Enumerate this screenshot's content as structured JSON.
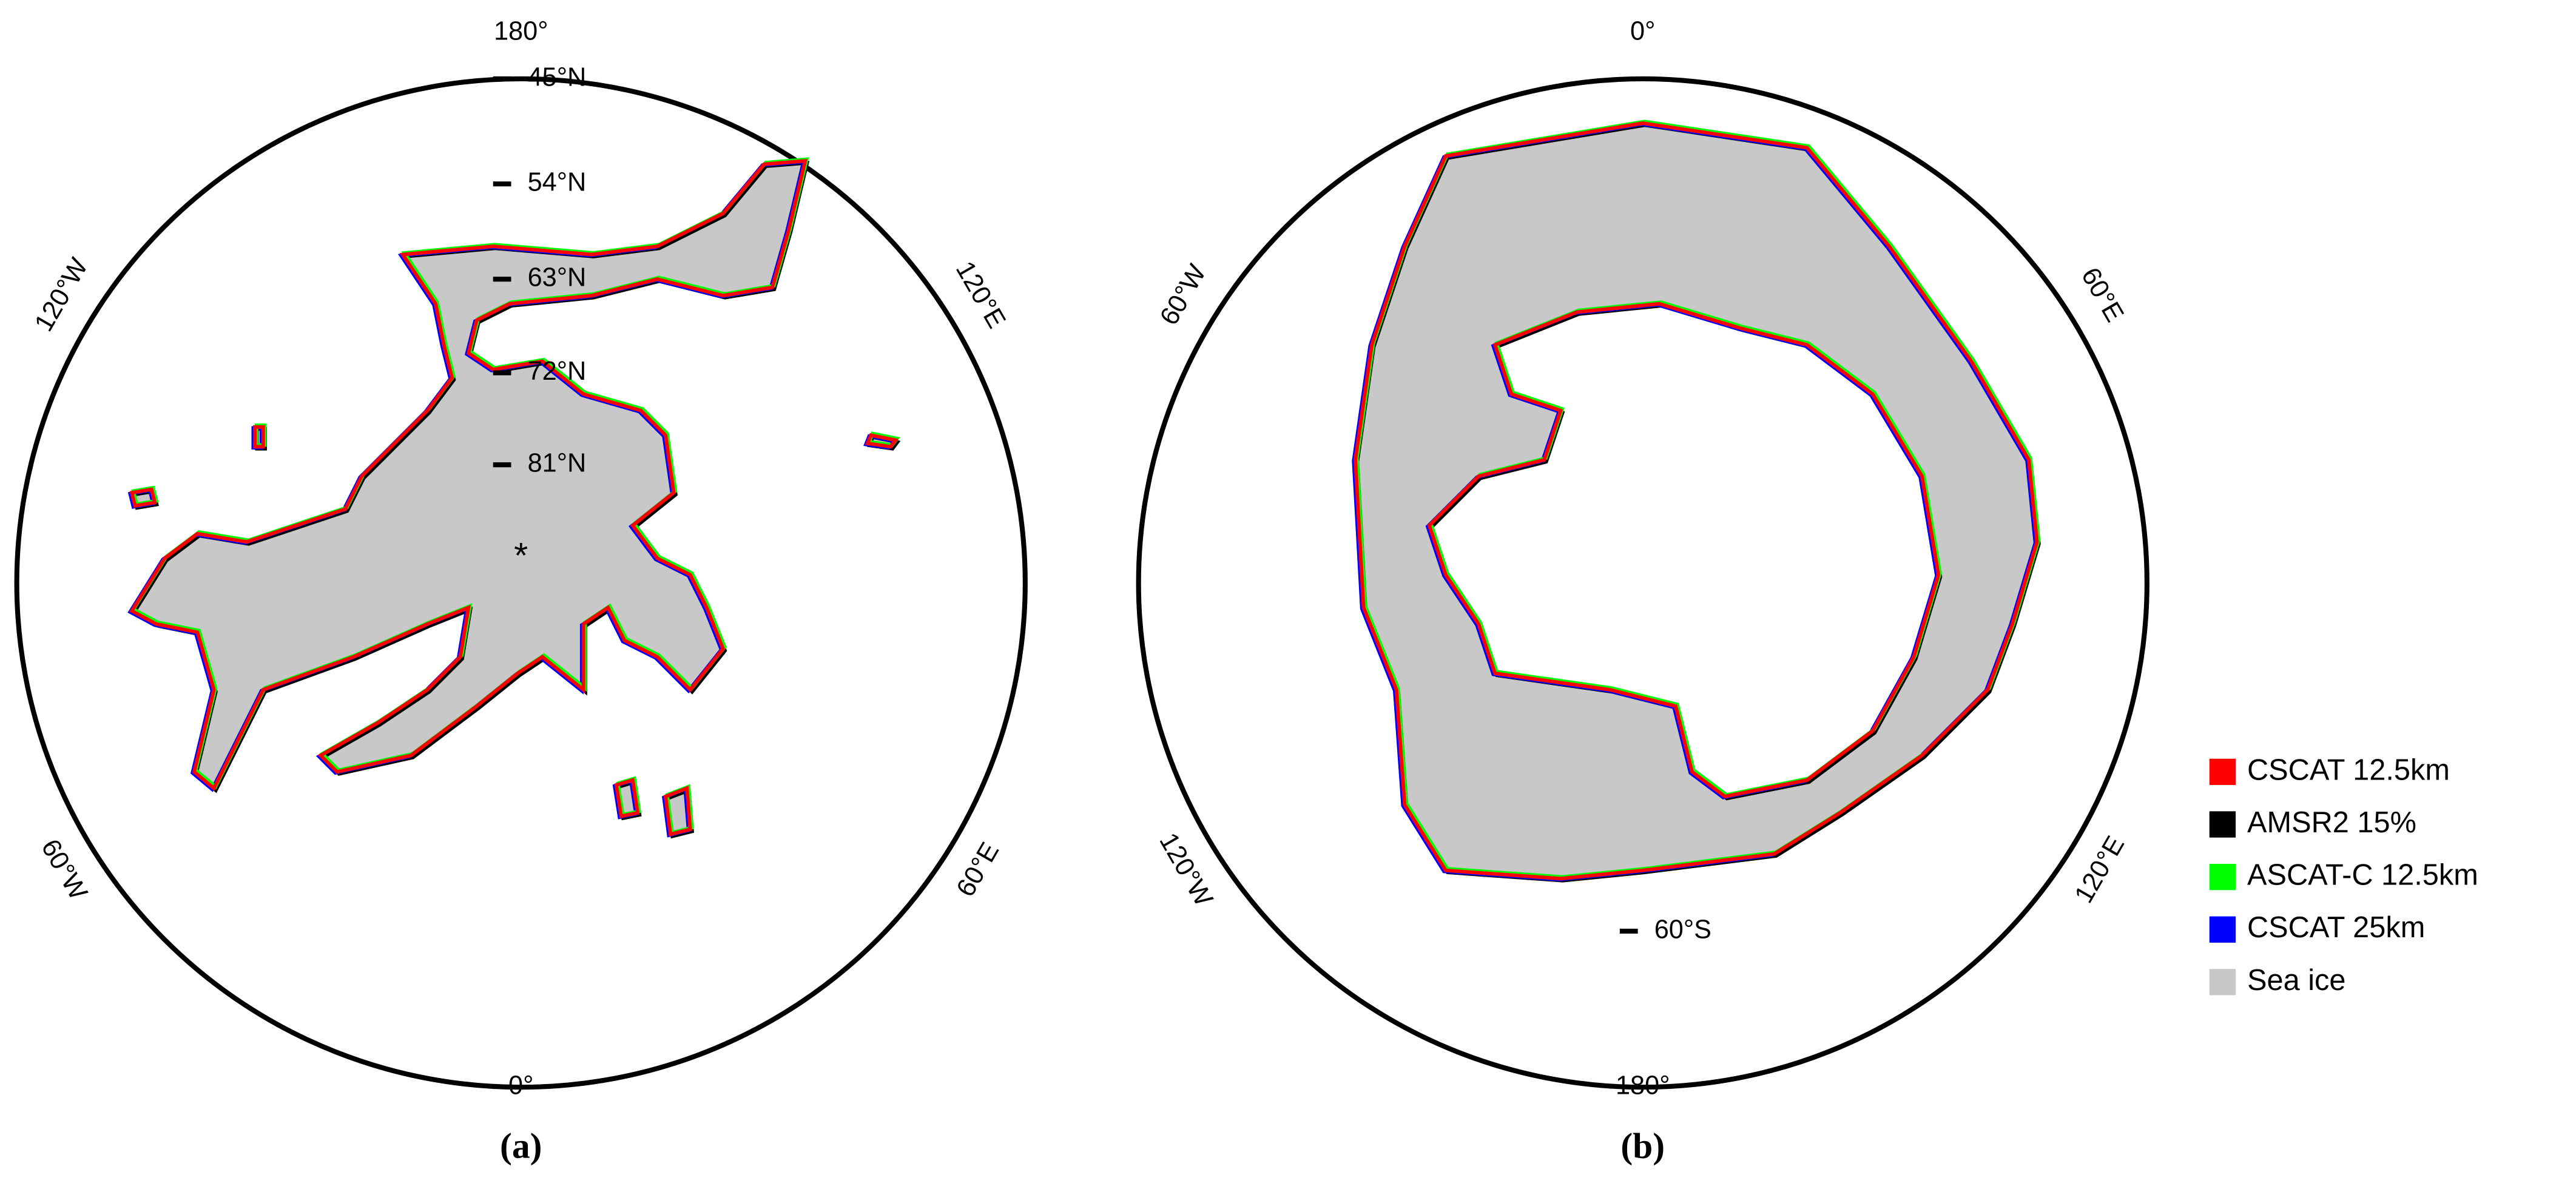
{
  "panels": [
    {
      "caption": "(a)",
      "longitude_labels": [
        "180°",
        "120°W",
        "120°E",
        "60°W",
        "60°E",
        "0°"
      ],
      "latitude_labels": [
        "45°N",
        "54°N",
        "63°N",
        "72°N",
        "81°N"
      ]
    },
    {
      "caption": "(b)",
      "longitude_labels": [
        "0°",
        "60°W",
        "60°E",
        "120°W",
        "120°E",
        "180°"
      ],
      "latitude_labels": [
        "60°S"
      ]
    }
  ],
  "legend": [
    {
      "label": "CSCAT 12.5km",
      "color": "#ff0000"
    },
    {
      "label": "AMSR2 15%",
      "color": "#000000"
    },
    {
      "label": "ASCAT-C 12.5km",
      "color": "#00ff00"
    },
    {
      "label": "CSCAT 25km",
      "color": "#0000ff"
    },
    {
      "label": "Sea ice",
      "color": "#c8c8c8"
    }
  ]
}
